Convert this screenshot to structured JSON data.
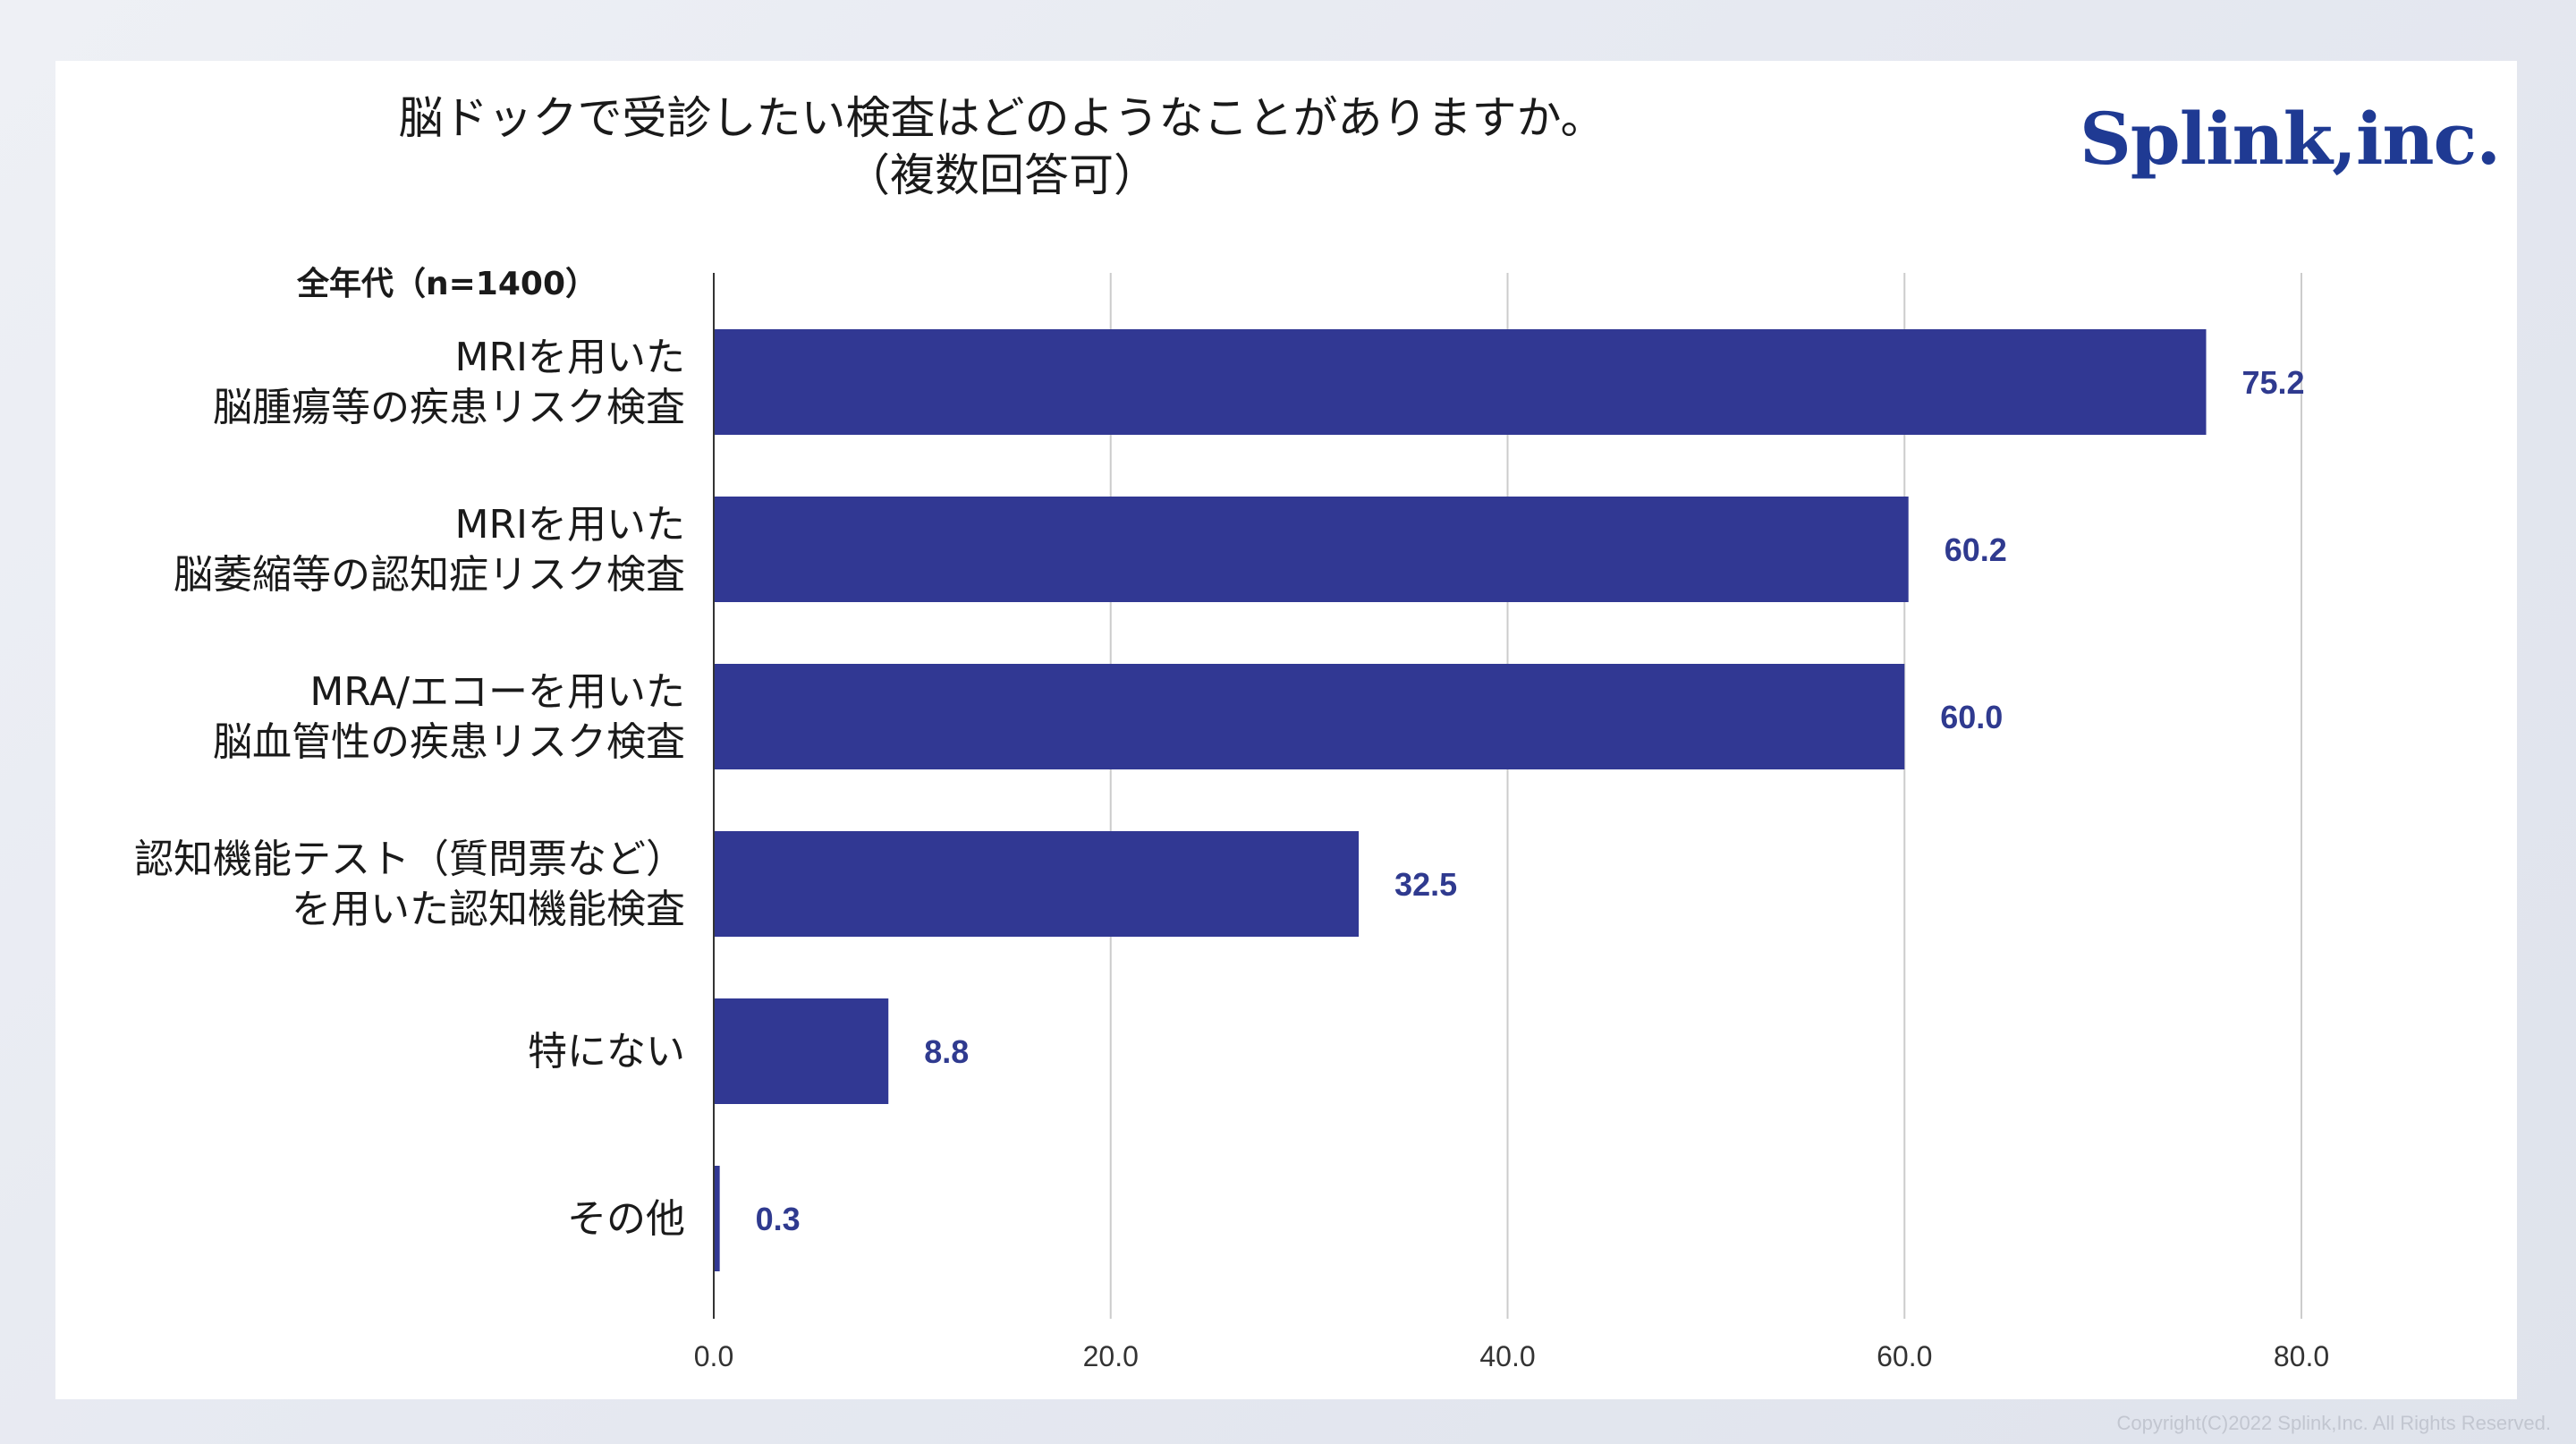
{
  "title_line1": "脳ドックで受診したい検査はどのようなことがありますか。",
  "title_line2": "（複数回答可）",
  "logo": "Splink,inc.",
  "copyright": "Copyright(C)2022 Splink,Inc. All Rights Reserved.",
  "colors": {
    "bar": "#313893",
    "value_label": "#2f3a8f",
    "logo": "#1f3a93"
  },
  "chart_data": {
    "type": "bar",
    "orientation": "horizontal",
    "subtitle": "全年代（n=1400）",
    "categories": [
      [
        "MRIを用いた",
        "脳腫瘍等の疾患リスク検査"
      ],
      [
        "MRIを用いた",
        "脳萎縮等の認知症リスク検査"
      ],
      [
        "MRA/エコーを用いた",
        "脳血管性の疾患リスク検査"
      ],
      [
        "認知機能テスト（質問票など）",
        "を用いた認知機能検査"
      ],
      [
        "特にない"
      ],
      [
        "その他"
      ]
    ],
    "values": [
      75.2,
      60.2,
      60.0,
      32.5,
      8.8,
      0.3
    ],
    "value_labels": [
      "75.2",
      "60.2",
      "60.0",
      "32.5",
      "8.8",
      "0.3"
    ],
    "xlim": [
      0,
      80
    ],
    "xticks": [
      "0.0",
      "20.0",
      "40.0",
      "60.0",
      "80.0"
    ],
    "grid": true
  }
}
